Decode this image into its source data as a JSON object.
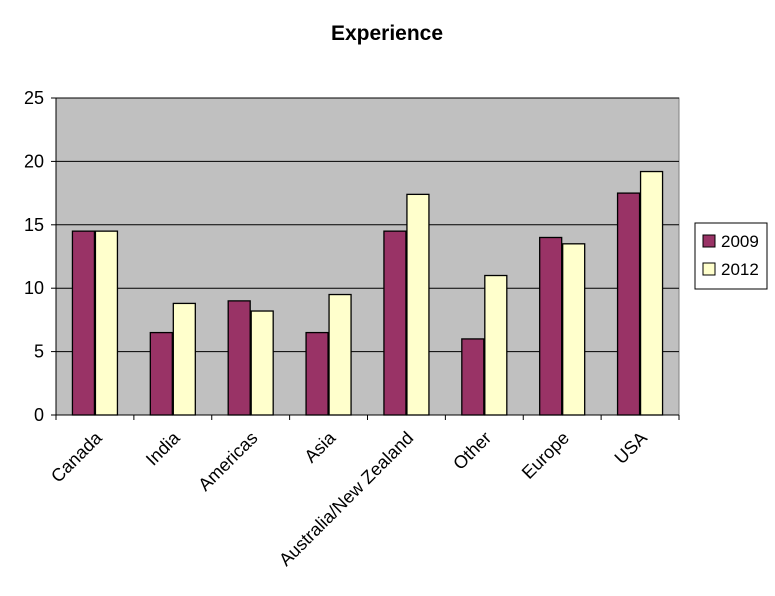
{
  "chart_data": {
    "type": "bar",
    "title": "Experience",
    "xlabel": "",
    "ylabel": "",
    "categories": [
      "Canada",
      "India",
      "Americas",
      "Asia",
      "Australia/New Zealand",
      "Other",
      "Europe",
      "USA"
    ],
    "series": [
      {
        "name": "2009",
        "color": "#993366",
        "values": [
          14.5,
          6.5,
          9.0,
          6.5,
          14.5,
          6.0,
          14.0,
          17.5
        ]
      },
      {
        "name": "2012",
        "color": "#FFFFCC",
        "values": [
          14.5,
          8.8,
          8.2,
          9.5,
          17.4,
          11.0,
          13.5,
          19.2
        ]
      }
    ],
    "ylim": [
      0,
      25
    ],
    "yticks": [
      "0",
      "5",
      "10",
      "15",
      "20",
      "25"
    ],
    "grid": true,
    "plot_background": "#C0C0C0",
    "legend_position": "right"
  }
}
